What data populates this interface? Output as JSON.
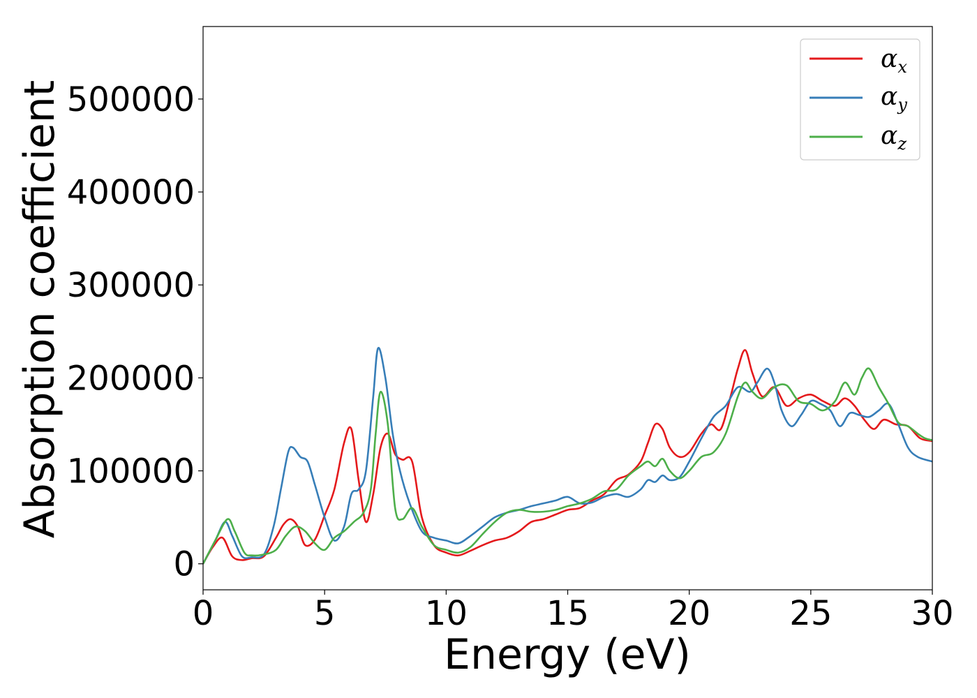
{
  "chart_data": {
    "type": "line",
    "xlabel": "Energy (eV)",
    "ylabel": "Absorption coefficient",
    "xlim": [
      0,
      30
    ],
    "ylim": [
      -28000,
      578000
    ],
    "xticks": [
      0,
      5,
      10,
      15,
      20,
      25,
      30
    ],
    "yticks": [
      0,
      100000,
      200000,
      300000,
      400000,
      500000
    ],
    "grid": false,
    "legend_position": "upper right",
    "series": [
      {
        "name": "αx",
        "symbol": "α",
        "subscript": "x",
        "color": "#e41a1c",
        "x": [
          0,
          0.4,
          0.8,
          1.2,
          1.6,
          2.0,
          2.5,
          3.0,
          3.3,
          3.6,
          3.9,
          4.2,
          4.6,
          5.0,
          5.4,
          5.8,
          6.1,
          6.4,
          6.7,
          7.0,
          7.3,
          7.6,
          7.9,
          8.2,
          8.6,
          9.0,
          9.5,
          10.0,
          10.5,
          11.0,
          11.5,
          12.0,
          12.5,
          13.0,
          13.5,
          14.0,
          14.5,
          15.0,
          15.5,
          16.0,
          16.5,
          17.0,
          17.5,
          18.0,
          18.3,
          18.6,
          18.9,
          19.2,
          19.6,
          20.0,
          20.5,
          20.9,
          21.3,
          21.7,
          22.0,
          22.3,
          22.6,
          23.0,
          23.5,
          24.0,
          24.5,
          25.0,
          25.5,
          26.0,
          26.4,
          26.8,
          27.2,
          27.6,
          28.0,
          28.5,
          29.0,
          29.5,
          30.0
        ],
        "y": [
          0,
          18000,
          28000,
          8000,
          4000,
          6000,
          8000,
          28000,
          42000,
          48000,
          40000,
          20000,
          26000,
          52000,
          80000,
          130000,
          145000,
          90000,
          45000,
          75000,
          125000,
          140000,
          118000,
          112000,
          110000,
          50000,
          20000,
          12000,
          9000,
          14000,
          20000,
          25000,
          28000,
          35000,
          45000,
          48000,
          53000,
          58000,
          60000,
          68000,
          75000,
          90000,
          96000,
          110000,
          130000,
          150000,
          145000,
          125000,
          115000,
          120000,
          140000,
          150000,
          145000,
          180000,
          210000,
          230000,
          205000,
          180000,
          190000,
          170000,
          178000,
          182000,
          175000,
          170000,
          178000,
          170000,
          155000,
          145000,
          155000,
          150000,
          148000,
          135000,
          132000
        ]
      },
      {
        "name": "αy",
        "symbol": "α",
        "subscript": "y",
        "color": "#377eb8",
        "x": [
          0,
          0.5,
          0.9,
          1.2,
          1.6,
          2.0,
          2.5,
          2.9,
          3.2,
          3.5,
          3.7,
          4.0,
          4.3,
          4.6,
          5.0,
          5.4,
          5.8,
          6.1,
          6.4,
          6.7,
          7.0,
          7.2,
          7.5,
          7.8,
          8.1,
          8.5,
          9.0,
          9.5,
          10.0,
          10.5,
          11.0,
          11.5,
          12.0,
          12.5,
          13.0,
          13.5,
          14.0,
          14.5,
          15.0,
          15.5,
          16.0,
          16.5,
          17.0,
          17.5,
          18.0,
          18.3,
          18.6,
          18.9,
          19.2,
          19.6,
          20.0,
          20.5,
          21.0,
          21.5,
          22.0,
          22.5,
          22.8,
          23.2,
          23.5,
          23.8,
          24.2,
          24.6,
          25.0,
          25.4,
          25.8,
          26.2,
          26.6,
          27.0,
          27.4,
          27.8,
          28.2,
          28.6,
          29.0,
          29.4,
          30.0
        ],
        "y": [
          0,
          25000,
          45000,
          30000,
          8000,
          7000,
          10000,
          40000,
          80000,
          120000,
          125000,
          115000,
          110000,
          85000,
          50000,
          25000,
          40000,
          75000,
          80000,
          100000,
          180000,
          232000,
          200000,
          140000,
          100000,
          65000,
          35000,
          28000,
          25000,
          22000,
          30000,
          40000,
          50000,
          55000,
          58000,
          62000,
          65000,
          68000,
          72000,
          65000,
          66000,
          72000,
          75000,
          72000,
          80000,
          90000,
          88000,
          95000,
          90000,
          93000,
          110000,
          135000,
          158000,
          170000,
          190000,
          185000,
          195000,
          210000,
          195000,
          165000,
          148000,
          160000,
          175000,
          172000,
          165000,
          148000,
          162000,
          160000,
          158000,
          165000,
          172000,
          150000,
          125000,
          115000,
          110000
        ]
      },
      {
        "name": "αz",
        "symbol": "α",
        "subscript": "z",
        "color": "#4daf4a",
        "x": [
          0,
          0.5,
          1.0,
          1.3,
          1.7,
          2.0,
          2.5,
          3.0,
          3.4,
          3.8,
          4.2,
          4.6,
          5.0,
          5.4,
          5.8,
          6.2,
          6.6,
          6.9,
          7.1,
          7.3,
          7.6,
          7.9,
          8.2,
          8.6,
          9.0,
          9.5,
          10.0,
          10.5,
          11.0,
          11.5,
          12.0,
          12.5,
          13.0,
          13.5,
          14.0,
          14.5,
          15.0,
          15.5,
          16.0,
          16.5,
          17.0,
          17.5,
          18.0,
          18.3,
          18.6,
          18.9,
          19.2,
          19.6,
          20.0,
          20.5,
          21.0,
          21.5,
          22.0,
          22.3,
          22.6,
          23.0,
          23.5,
          24.0,
          24.5,
          25.0,
          25.5,
          26.0,
          26.4,
          26.8,
          27.1,
          27.4,
          27.8,
          28.2,
          28.6,
          29.0,
          29.4,
          29.7,
          30.0
        ],
        "y": [
          0,
          25000,
          48000,
          35000,
          12000,
          9000,
          10000,
          15000,
          30000,
          40000,
          35000,
          22000,
          15000,
          28000,
          35000,
          45000,
          55000,
          80000,
          140000,
          185000,
          150000,
          60000,
          48000,
          60000,
          40000,
          20000,
          15000,
          12000,
          18000,
          32000,
          45000,
          55000,
          58000,
          56000,
          56000,
          58000,
          62000,
          65000,
          70000,
          78000,
          80000,
          95000,
          105000,
          110000,
          105000,
          113000,
          100000,
          92000,
          100000,
          115000,
          120000,
          140000,
          180000,
          195000,
          185000,
          178000,
          190000,
          192000,
          175000,
          172000,
          165000,
          175000,
          195000,
          182000,
          200000,
          210000,
          190000,
          172000,
          152000,
          148000,
          140000,
          135000,
          133000
        ]
      }
    ]
  }
}
